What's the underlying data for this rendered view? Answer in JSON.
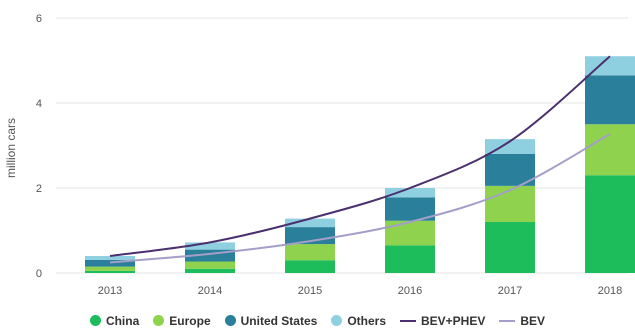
{
  "chart_data": {
    "type": "bar",
    "stacked": true,
    "ylabel": "million cars",
    "xlabel": "",
    "ylim": [
      0,
      6
    ],
    "yticks": [
      0,
      2,
      4,
      6
    ],
    "grid": "horizontal",
    "legend_position": "bottom",
    "categories": [
      "2013",
      "2014",
      "2015",
      "2016",
      "2017",
      "2018"
    ],
    "series": [
      {
        "name": "China",
        "kind": "bar",
        "color": "#1dbd5b",
        "values": [
          0.05,
          0.1,
          0.3,
          0.65,
          1.2,
          2.3
        ]
      },
      {
        "name": "Europe",
        "kind": "bar",
        "color": "#8ed24d",
        "values": [
          0.1,
          0.17,
          0.38,
          0.58,
          0.85,
          1.2
        ]
      },
      {
        "name": "United States",
        "kind": "bar",
        "color": "#2a7f9a",
        "values": [
          0.16,
          0.28,
          0.4,
          0.55,
          0.75,
          1.15
        ]
      },
      {
        "name": "Others",
        "kind": "bar",
        "color": "#8ecfe0",
        "values": [
          0.09,
          0.17,
          0.2,
          0.22,
          0.35,
          0.45
        ]
      },
      {
        "name": "BEV+PHEV",
        "kind": "line",
        "color": "#4b2f6e",
        "values": [
          0.4,
          0.72,
          1.28,
          2.0,
          3.1,
          5.1
        ]
      },
      {
        "name": "BEV",
        "kind": "line",
        "color": "#a59ec8",
        "values": [
          0.25,
          0.45,
          0.75,
          1.2,
          1.95,
          3.27
        ]
      }
    ]
  }
}
